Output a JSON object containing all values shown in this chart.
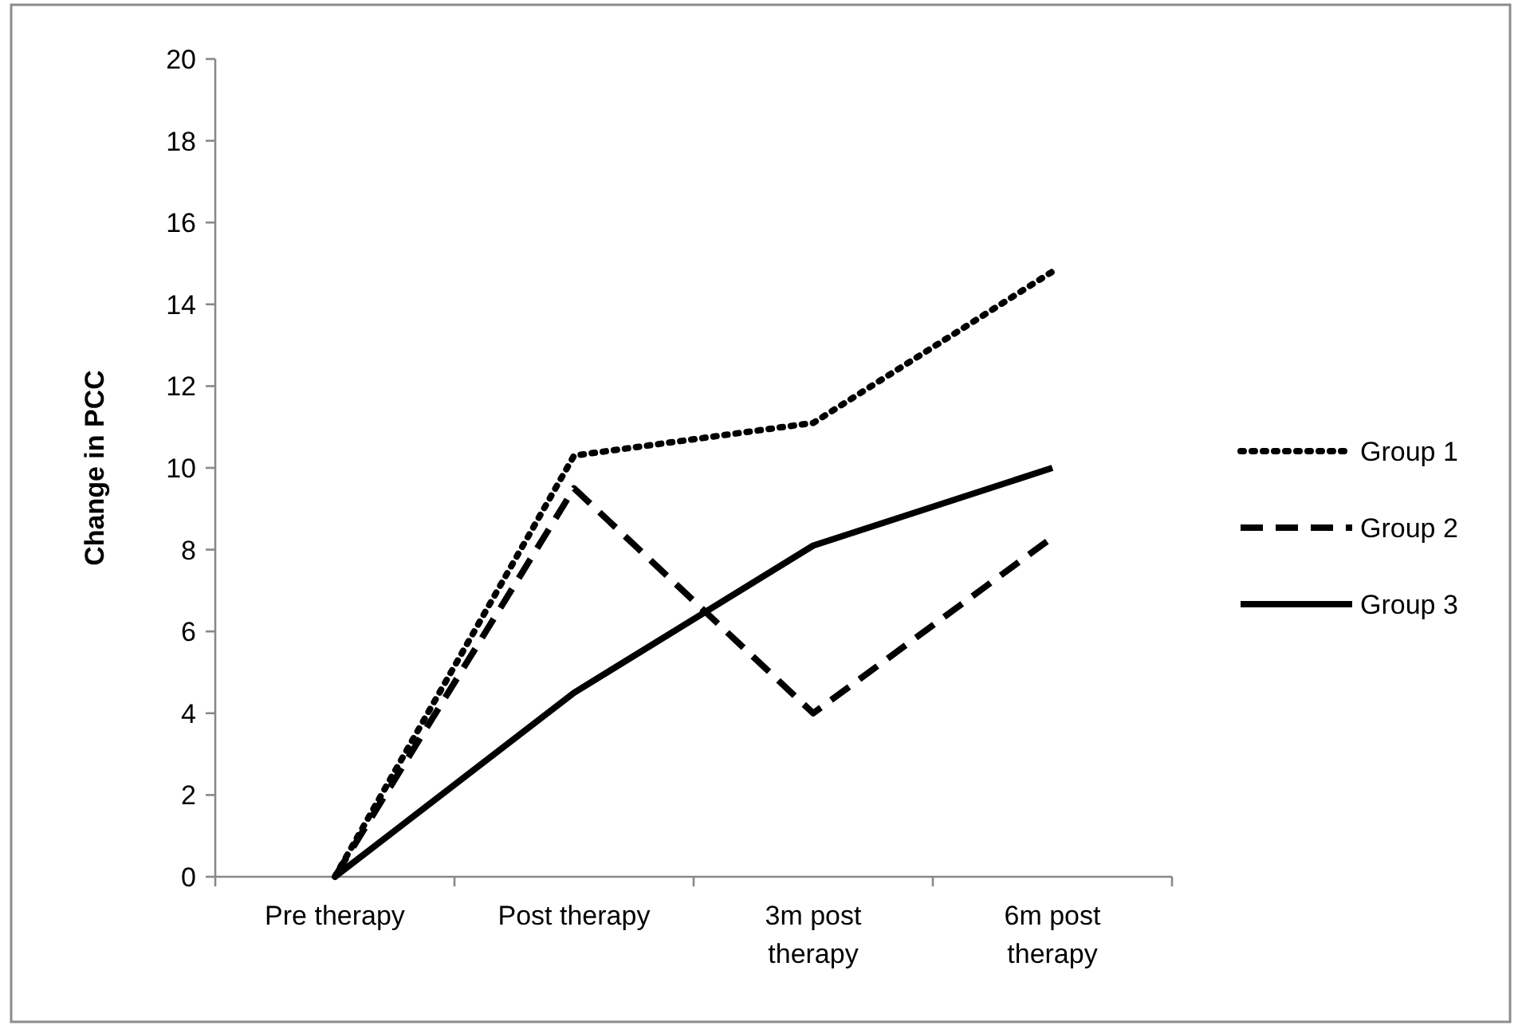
{
  "chart_data": {
    "type": "line",
    "ylabel": "Change in PCC",
    "categories": [
      "Pre therapy",
      "Post therapy",
      "3m post therapy",
      "6m post therapy"
    ],
    "series": [
      {
        "name": "Group 1",
        "color": "#000000",
        "line_style": "dotted",
        "values": [
          0,
          10.3,
          11.1,
          14.8
        ]
      },
      {
        "name": "Group 2",
        "color": "#000000",
        "line_style": "dashed",
        "values": [
          0,
          9.5,
          4.0,
          8.3
        ]
      },
      {
        "name": "Group 3",
        "color": "#000000",
        "line_style": "solid",
        "values": [
          0,
          4.5,
          8.1,
          10.0
        ]
      }
    ],
    "ylim": [
      0,
      20
    ],
    "yticks": [
      0,
      2,
      4,
      6,
      8,
      10,
      12,
      14,
      16,
      18,
      20
    ],
    "grid": false,
    "legend": "right",
    "marker": "none"
  }
}
